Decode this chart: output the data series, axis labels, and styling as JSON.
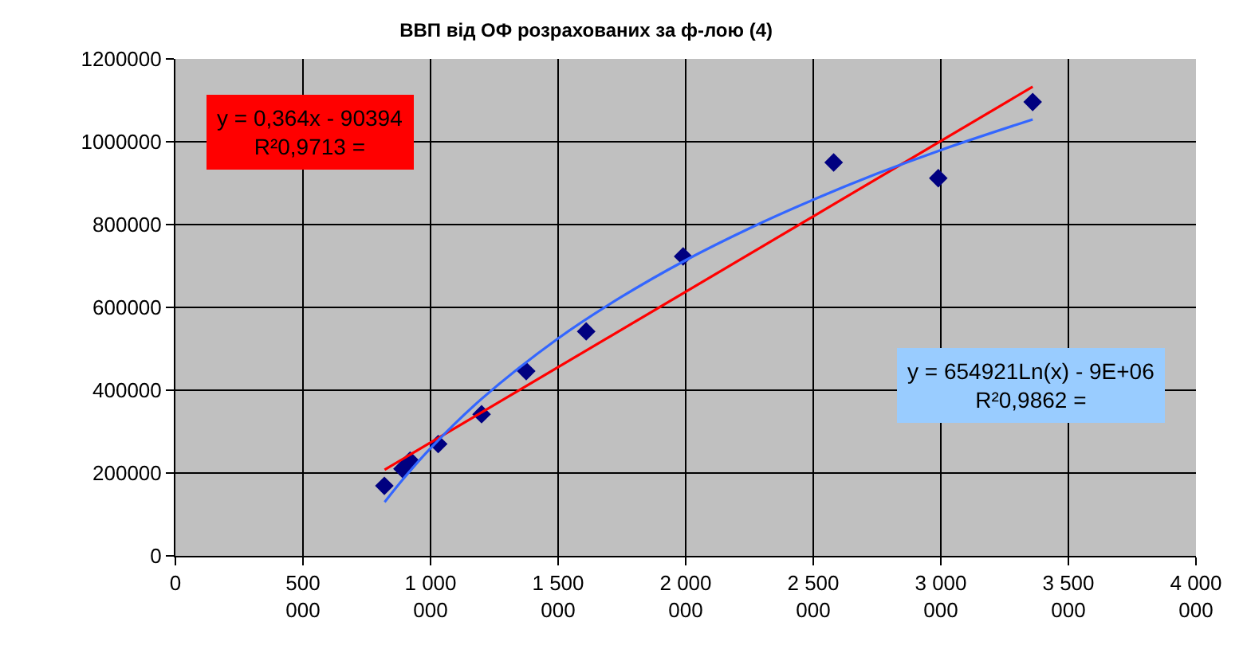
{
  "chart_data": {
    "type": "scatter",
    "title": "ВВП від ОФ розрахованих за ф-лою (4)",
    "series": [
      {
        "color": "#000080",
        "marker": "diamond",
        "x": [
          819000,
          890000,
          920000,
          1030000,
          1200000,
          1375000,
          1610000,
          1990000,
          2580000,
          2990000,
          3360000
        ],
        "values": [
          169000,
          210000,
          230000,
          270000,
          342000,
          446000,
          542000,
          723000,
          950000,
          912000,
          1096000
        ]
      },
      {
        "type": "line",
        "color": "#ff0000",
        "marker": "none",
        "x": [
          820000,
          3360000
        ],
        "values": [
          208000,
          1133000
        ]
      },
      {
        "type": "line",
        "color": "#3366ff",
        "marker": "none",
        "x": [
          820000,
          900000,
          1000000,
          1200000,
          1500000,
          1750000,
          2000000,
          2250000,
          2500000,
          2750000,
          3000000,
          3360000
        ],
        "values": [
          130000,
          191000,
          260000,
          379000,
          525000,
          626000,
          714000,
          791000,
          860000,
          923000,
          980000,
          1054000
        ]
      }
    ],
    "annotations": [
      "y = 0,364x - 90394\nR²0,9713 =",
      "y = 654921Ln(x) - 9E+06\nR²0,9862 ="
    ],
    "xlim": [
      0,
      4000000
    ],
    "xticks": [
      0,
      {
        "value": 500000,
        "label": "500 000"
      },
      {
        "value": 1000000,
        "label": "1 000 000"
      },
      {
        "value": 1500000,
        "label": "1 500 000"
      },
      {
        "value": 2000000,
        "label": "2 000 000"
      },
      {
        "value": 2500000,
        "label": "2 500 000"
      },
      {
        "value": 3000000,
        "label": "3 000 000"
      },
      {
        "value": 3500000,
        "label": "3 500 000"
      },
      {
        "value": 4000000,
        "label": "4 000 000"
      }
    ],
    "ylim": [
      0,
      1200000
    ],
    "yticks": [
      0,
      200000,
      400000,
      600000,
      800000,
      1000000,
      1200000
    ],
    "grid": true
  }
}
